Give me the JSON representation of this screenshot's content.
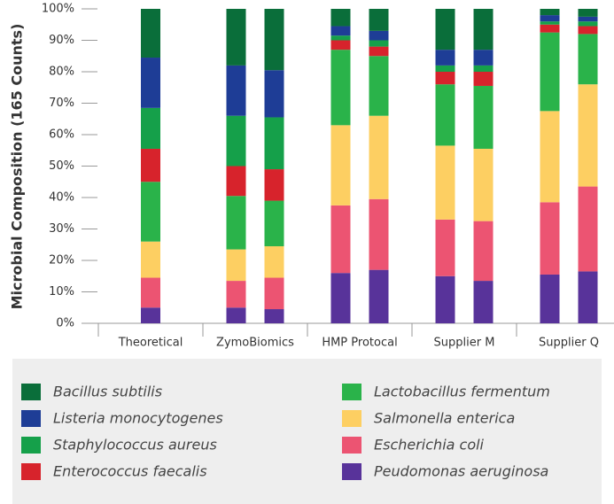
{
  "chart_data": {
    "type": "bar",
    "stacked": true,
    "y_label": "Microbial Composition (165 Counts)",
    "categories": [
      "Theoretical",
      "ZymoBiomics",
      null,
      "HMP Protocal",
      null,
      "Supplier M",
      null,
      "Supplier Q",
      null
    ],
    "series": [
      {
        "name": "Peudomonas aeruginosa",
        "color": "#58339a",
        "values": [
          5,
          5,
          4.5,
          16,
          17,
          15,
          13.5,
          15.5,
          16.5
        ]
      },
      {
        "name": "Escherichia coli",
        "color": "#ec5472",
        "values": [
          9.5,
          8.5,
          10,
          21.5,
          22.5,
          18,
          19,
          23,
          27
        ]
      },
      {
        "name": "Salmonella enterica",
        "color": "#fdcf62",
        "values": [
          11.5,
          10,
          10,
          25.5,
          26.5,
          23.5,
          23,
          29,
          32.5
        ]
      },
      {
        "name": "Lactobacillus fermentum",
        "color": "#2ab34a",
        "values": [
          19,
          17,
          14.5,
          24,
          19,
          19.5,
          20,
          25,
          16
        ]
      },
      {
        "name": "Enterococcus faecalis",
        "color": "#d7232c",
        "values": [
          10.5,
          9.5,
          10,
          3,
          3,
          4,
          4.5,
          2.5,
          2.5
        ]
      },
      {
        "name": "Staphylococcus aureus",
        "color": "#15a04a",
        "values": [
          13,
          16,
          16.5,
          1.5,
          2,
          2,
          2,
          1,
          1.5
        ]
      },
      {
        "name": "Listeria monocytogenes",
        "color": "#1e3d96",
        "values": [
          16,
          16,
          15,
          3,
          3,
          5,
          5,
          2,
          1.5
        ]
      },
      {
        "name": "Bacillus subtilis",
        "color": "#0a6e3a",
        "values": [
          15.5,
          18,
          19.5,
          5.5,
          7,
          13,
          13,
          2,
          2.5
        ]
      }
    ],
    "ylim": [
      0,
      100
    ],
    "yticks": [
      {
        "value": 0,
        "label": "0%"
      },
      {
        "value": 10,
        "label": "10%"
      },
      {
        "value": 20,
        "label": "20%"
      },
      {
        "value": 30,
        "label": "30%"
      },
      {
        "value": 40,
        "label": "40%"
      },
      {
        "value": 50,
        "label": "50%"
      },
      {
        "value": 60,
        "label": "60%"
      },
      {
        "value": 70,
        "label": "70%"
      },
      {
        "value": 80,
        "label": "80%"
      },
      {
        "value": 90,
        "label": "90%"
      },
      {
        "value": 100,
        "label": "100%"
      }
    ]
  }
}
